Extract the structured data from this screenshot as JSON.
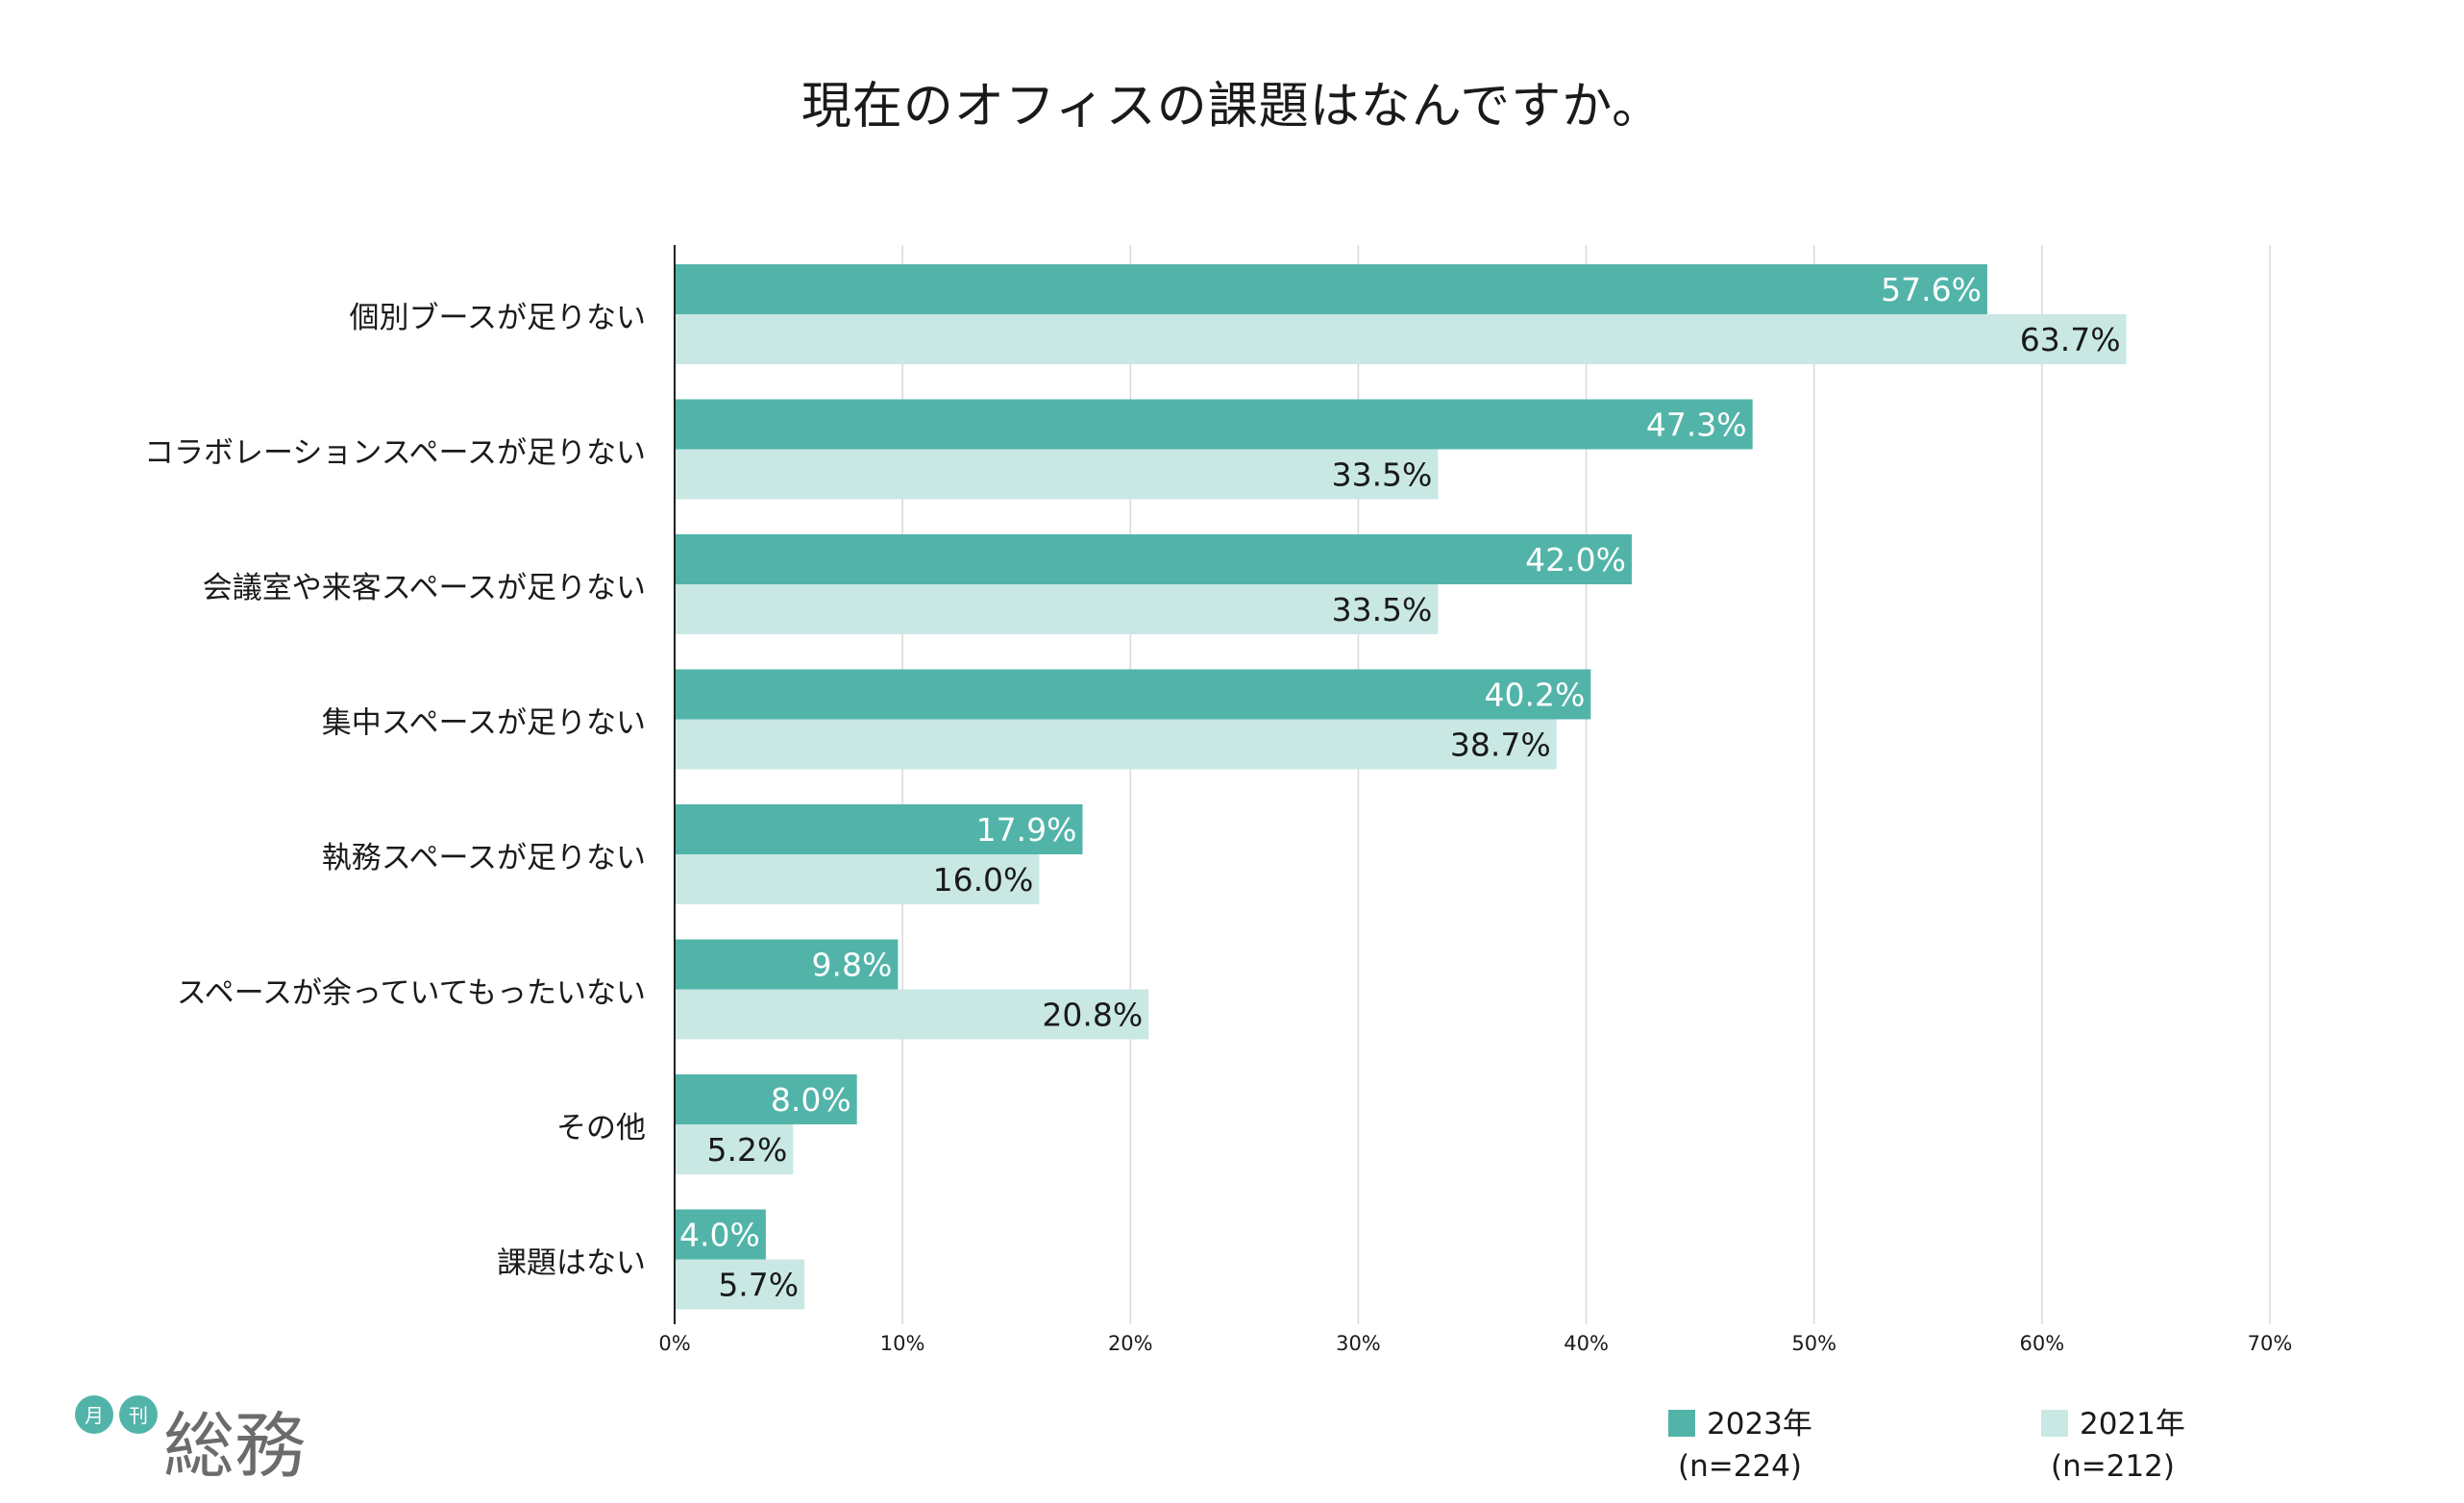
{
  "colors": {
    "series_2023": "#52b4a9",
    "series_2021": "#c9e8e4",
    "grid": "#d9d9d9",
    "axis": "#222222"
  },
  "chart_data": {
    "type": "bar",
    "orientation": "horizontal",
    "title": "現在のオフィスの課題はなんですか。",
    "categories": [
      "個別ブースが足りない",
      "コラボレーションスペースが足りない",
      "会議室や来客スペースが足りない",
      "集中スペースが足りない",
      "執務スペースが足りない",
      "スペースが余っていてもったいない",
      "その他",
      "課題はない"
    ],
    "series": [
      {
        "name": "2023年",
        "n_label": "(n=224)",
        "values": [
          57.6,
          47.3,
          42.0,
          40.2,
          17.9,
          9.8,
          8.0,
          4.0
        ]
      },
      {
        "name": "2021年",
        "n_label": "(n=212)",
        "values": [
          63.7,
          33.5,
          33.5,
          38.7,
          16.0,
          20.8,
          5.2,
          5.7
        ]
      }
    ],
    "xlim": [
      0,
      70
    ],
    "xticks": [
      "0%",
      "10%",
      "20%",
      "30%",
      "40%",
      "50%",
      "60%",
      "70%"
    ],
    "grid": true,
    "legend": "bottom-right"
  },
  "logo": {
    "small1": "月",
    "small2": "刊",
    "main": "総務"
  }
}
